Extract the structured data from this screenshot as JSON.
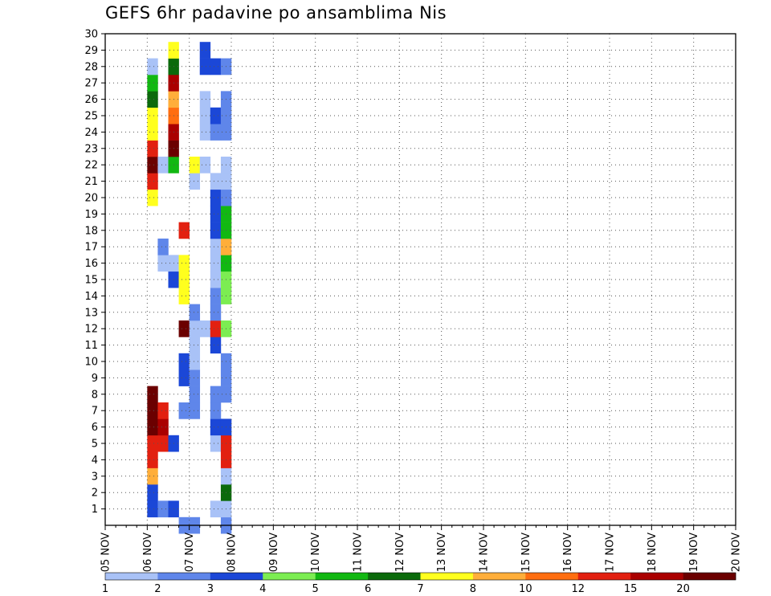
{
  "chart_data": {
    "type": "heatmap",
    "title": "GEFS 6hr padavine po ansamblima Nis",
    "x_tick_labels": [
      "05 NOV",
      "06 NOV",
      "07 NOV",
      "08 NOV",
      "09 NOV",
      "10 NOV",
      "11 NOV",
      "12 NOV",
      "13 NOV",
      "14 NOV",
      "15 NOV",
      "16 NOV",
      "17 NOV",
      "18 NOV",
      "19 NOV",
      "20 NOV"
    ],
    "y_tick_labels": [
      "1",
      "2",
      "3",
      "4",
      "5",
      "6",
      "7",
      "8",
      "9",
      "10",
      "11",
      "12",
      "13",
      "14",
      "15",
      "16",
      "17",
      "18",
      "19",
      "20",
      "21",
      "22",
      "23",
      "24",
      "25",
      "26",
      "27",
      "28",
      "29",
      "30"
    ],
    "ylim": [
      0,
      30
    ],
    "grid": true,
    "colorbar": {
      "labels": [
        "1",
        "2",
        "3",
        "4",
        "5",
        "6",
        "7",
        "8",
        "10",
        "12",
        "15",
        "20"
      ],
      "colors": [
        "#a9c2f7",
        "#5f86ea",
        "#1b47d7",
        "#7ced52",
        "#12b812",
        "#0b6a0b",
        "#ffff1e",
        "#ffae3a",
        "#ff6e10",
        "#e22010",
        "#aa0000",
        "#6b0000"
      ]
    },
    "cells": [
      [
        0,
        1,
        2
      ],
      [
        0,
        2,
        2
      ],
      [
        0,
        3,
        7
      ],
      [
        0,
        4,
        9
      ],
      [
        0,
        5,
        9
      ],
      [
        0,
        6,
        11
      ],
      [
        0,
        7,
        11
      ],
      [
        0,
        8,
        11
      ],
      [
        0,
        20,
        6
      ],
      [
        0,
        21,
        9
      ],
      [
        0,
        22,
        11
      ],
      [
        0,
        23,
        9
      ],
      [
        0,
        24,
        6
      ],
      [
        0,
        25,
        6
      ],
      [
        0,
        26,
        5
      ],
      [
        0,
        27,
        4
      ],
      [
        0,
        28,
        0
      ],
      [
        1,
        1,
        1
      ],
      [
        1,
        5,
        9
      ],
      [
        1,
        6,
        10
      ],
      [
        1,
        7,
        9
      ],
      [
        1,
        16,
        0
      ],
      [
        1,
        17,
        1
      ],
      [
        1,
        22,
        0
      ],
      [
        2,
        1,
        2
      ],
      [
        2,
        5,
        2
      ],
      [
        2,
        15,
        2
      ],
      [
        2,
        16,
        0
      ],
      [
        2,
        22,
        4
      ],
      [
        2,
        23,
        11
      ],
      [
        2,
        24,
        10
      ],
      [
        2,
        25,
        8
      ],
      [
        2,
        26,
        7
      ],
      [
        2,
        27,
        10
      ],
      [
        2,
        28,
        5
      ],
      [
        2,
        29,
        6
      ],
      [
        3,
        0,
        1
      ],
      [
        3,
        7,
        1
      ],
      [
        3,
        9,
        2
      ],
      [
        3,
        10,
        2
      ],
      [
        3,
        12,
        11
      ],
      [
        3,
        14,
        6
      ],
      [
        3,
        15,
        6
      ],
      [
        3,
        16,
        6
      ],
      [
        3,
        18,
        9
      ],
      [
        4,
        0,
        1
      ],
      [
        4,
        7,
        1
      ],
      [
        4,
        8,
        1
      ],
      [
        4,
        9,
        1
      ],
      [
        4,
        10,
        0
      ],
      [
        4,
        11,
        0
      ],
      [
        4,
        12,
        0
      ],
      [
        4,
        13,
        1
      ],
      [
        4,
        21,
        0
      ],
      [
        4,
        22,
        6
      ],
      [
        5,
        12,
        0
      ],
      [
        5,
        22,
        0
      ],
      [
        5,
        24,
        0
      ],
      [
        5,
        25,
        0
      ],
      [
        5,
        26,
        0
      ],
      [
        5,
        28,
        2
      ],
      [
        5,
        29,
        2
      ],
      [
        6,
        1,
        0
      ],
      [
        6,
        5,
        0
      ],
      [
        6,
        6,
        2
      ],
      [
        6,
        7,
        1
      ],
      [
        6,
        8,
        1
      ],
      [
        6,
        11,
        2
      ],
      [
        6,
        12,
        9
      ],
      [
        6,
        13,
        1
      ],
      [
        6,
        14,
        1
      ],
      [
        6,
        15,
        0
      ],
      [
        6,
        16,
        0
      ],
      [
        6,
        17,
        0
      ],
      [
        6,
        18,
        2
      ],
      [
        6,
        19,
        2
      ],
      [
        6,
        20,
        2
      ],
      [
        6,
        21,
        0
      ],
      [
        6,
        24,
        1
      ],
      [
        6,
        25,
        2
      ],
      [
        6,
        28,
        2
      ],
      [
        7,
        0,
        1
      ],
      [
        7,
        1,
        0
      ],
      [
        7,
        2,
        5
      ],
      [
        7,
        3,
        0
      ],
      [
        7,
        4,
        9
      ],
      [
        7,
        5,
        9
      ],
      [
        7,
        6,
        2
      ],
      [
        7,
        8,
        1
      ],
      [
        7,
        9,
        1
      ],
      [
        7,
        10,
        1
      ],
      [
        7,
        12,
        3
      ],
      [
        7,
        14,
        3
      ],
      [
        7,
        15,
        3
      ],
      [
        7,
        16,
        4
      ],
      [
        7,
        17,
        7
      ],
      [
        7,
        18,
        4
      ],
      [
        7,
        19,
        4
      ],
      [
        7,
        20,
        1
      ],
      [
        7,
        21,
        0
      ],
      [
        7,
        22,
        0
      ],
      [
        7,
        24,
        1
      ],
      [
        7,
        25,
        1
      ],
      [
        7,
        26,
        1
      ],
      [
        7,
        28,
        1
      ]
    ]
  }
}
